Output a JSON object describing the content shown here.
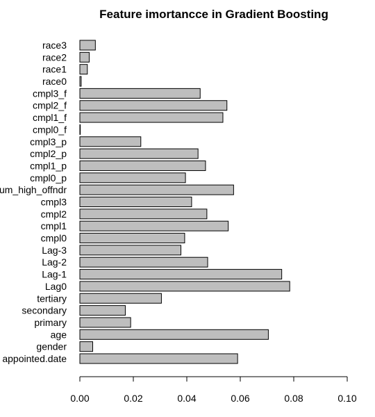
{
  "chart_data": {
    "type": "bar",
    "orientation": "horizontal",
    "title": "Feature imortancce in Gradient Boosting",
    "xlabel": "",
    "ylabel": "",
    "xlim": [
      0,
      0.1
    ],
    "xticks": [
      0.0,
      0.02,
      0.04,
      0.06,
      0.08,
      0.1
    ],
    "xtick_labels": [
      "0.00",
      "0.02",
      "0.04",
      "0.06",
      "0.08",
      "0.10"
    ],
    "grid": false,
    "bar_color": "#bebebe",
    "categories": [
      "appointed.date",
      "gender",
      "age",
      "primary",
      "secondary",
      "tertiary",
      "Lag0",
      "Lag-1",
      "Lag-2",
      "Lag-3",
      "cmpl0",
      "cmpl1",
      "cmpl2",
      "cmpl3",
      "num_high_offndr",
      "cmpl0_p",
      "cmpl1_p",
      "cmpl2_p",
      "cmpl3_p",
      "cmpl0_f",
      "cmpl1_f",
      "cmpl2_f",
      "cmpl3_f",
      "race0",
      "race1",
      "race2",
      "race3"
    ],
    "values": [
      0.059,
      0.0048,
      0.0705,
      0.019,
      0.017,
      0.0305,
      0.0785,
      0.0755,
      0.0478,
      0.0378,
      0.0392,
      0.0555,
      0.0475,
      0.0418,
      0.0575,
      0.0395,
      0.047,
      0.0442,
      0.0228,
      0.0001,
      0.0535,
      0.055,
      0.045,
      0.0005,
      0.0028,
      0.0035,
      0.0058
    ]
  }
}
